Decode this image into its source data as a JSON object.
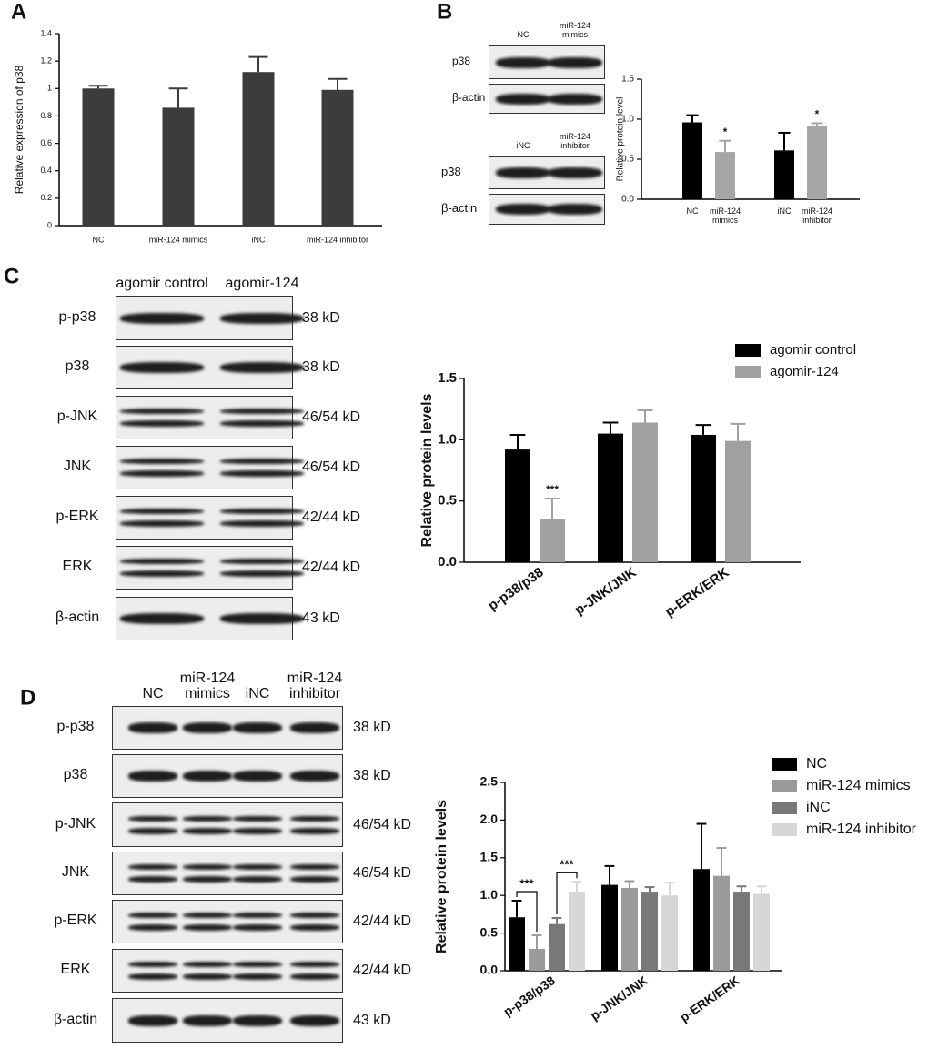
{
  "panel_labels": [
    "A",
    "B",
    "C",
    "D"
  ],
  "blots": [
    {
      "columns": [
        "NC",
        "miR-124 mimics"
      ],
      "rows": [
        {
          "label": "p38"
        },
        {
          "label": "β-actin"
        }
      ]
    },
    {
      "columns": [
        "iNC",
        "miR-124 inhibitor"
      ],
      "rows": [
        {
          "label": "p38"
        },
        {
          "label": "β-actin"
        }
      ]
    },
    {
      "columns": [
        "agomir control",
        "agomir-124"
      ],
      "rows": [
        {
          "label": "p-p38",
          "size": "38 kD"
        },
        {
          "label": "p38",
          "size": "38 kD"
        },
        {
          "label": "p-JNK",
          "size": "46/54 kD"
        },
        {
          "label": "JNK",
          "size": "46/54 kD"
        },
        {
          "label": "p-ERK",
          "size": "42/44 kD"
        },
        {
          "label": "ERK",
          "size": "42/44 kD"
        },
        {
          "label": "β-actin",
          "size": "43 kD"
        }
      ]
    },
    {
      "columns": [
        "NC",
        "miR-124 mimics",
        "iNC",
        "miR-124 inhibitor"
      ],
      "rows": [
        {
          "label": "p-p38",
          "size": "38 kD"
        },
        {
          "label": "p38",
          "size": "38 kD"
        },
        {
          "label": "p-JNK",
          "size": "46/54 kD"
        },
        {
          "label": "JNK",
          "size": "46/54 kD"
        },
        {
          "label": "p-ERK",
          "size": "42/44 kD"
        },
        {
          "label": "ERK",
          "size": "42/44 kD"
        },
        {
          "label": "β-actin",
          "size": "43 kD"
        }
      ]
    }
  ],
  "chart_data": [
    {
      "type": "bar",
      "y_label": "Relative expression of p38",
      "categories": [
        "NC",
        "miR-124 mimics",
        "iNC",
        "miR-124 inhibitor"
      ],
      "values": [
        1.0,
        0.86,
        1.12,
        0.99
      ],
      "errors": [
        0.02,
        0.14,
        0.11,
        0.08
      ],
      "colors": [
        "#3c3c3c",
        "#3c3c3c",
        "#3c3c3c",
        "#3c3c3c"
      ],
      "ylim": [
        0,
        1.4
      ],
      "yticks": [
        0,
        0.2,
        0.4,
        0.6,
        0.8,
        1,
        1.2,
        1.4
      ]
    },
    {
      "type": "bar",
      "y_label": "Relative protein level",
      "categories": [
        "NC",
        "miR-124 mimics",
        "iNC",
        "miR-124 inhibitor"
      ],
      "values": [
        0.96,
        0.59,
        0.61,
        0.91
      ],
      "errors": [
        0.09,
        0.14,
        0.22,
        0.04
      ],
      "colors": [
        "#000000",
        "#a6a6a6",
        "#000000",
        "#a6a6a6"
      ],
      "marks": [
        null,
        "*",
        null,
        "*"
      ],
      "ylim": [
        0,
        1.5
      ],
      "yticks": [
        {
          "value": 0,
          "label": "0.0"
        },
        {
          "value": 0.5,
          "label": "0.5"
        },
        {
          "value": 1,
          "label": "1.0"
        },
        {
          "value": 1.5,
          "label": "1.5"
        }
      ]
    },
    {
      "type": "bar",
      "y_label": "Relative protein levels",
      "categories": [
        "p-p38/p38",
        "p-JNK/JNK",
        "p-ERK/ERK"
      ],
      "series": [
        {
          "name": "agomir control",
          "color": "#000000",
          "values": [
            0.92,
            1.05,
            1.04
          ],
          "errors": [
            0.12,
            0.09,
            0.08
          ]
        },
        {
          "name": "agomir-124",
          "color": "#a0a0a0",
          "values": [
            0.35,
            1.14,
            0.99
          ],
          "errors": [
            0.17,
            0.1,
            0.14
          ],
          "marks": [
            "***",
            null,
            null
          ]
        }
      ],
      "ylim": [
        0,
        1.5
      ],
      "yticks": [
        {
          "value": 0,
          "label": "0.0"
        },
        {
          "value": 0.5,
          "label": "0.5"
        },
        {
          "value": 1,
          "label": "1.0"
        },
        {
          "value": 1.5,
          "label": "1.5"
        }
      ]
    },
    {
      "type": "bar",
      "y_label": "Relative protein levels",
      "categories": [
        "p-p38/p38",
        "p-JNK/JNK",
        "p-ERK/ERK"
      ],
      "series": [
        {
          "name": "NC",
          "color": "#000000",
          "values": [
            0.71,
            1.14,
            1.35
          ],
          "errors": [
            0.22,
            0.25,
            0.6
          ]
        },
        {
          "name": "miR-124 mimics",
          "color": "#9a9a9a",
          "values": [
            0.29,
            1.1,
            1.26
          ],
          "errors": [
            0.18,
            0.09,
            0.37
          ],
          "marks": [
            "***",
            null,
            null
          ]
        },
        {
          "name": "iNC",
          "color": "#787878",
          "values": [
            0.62,
            1.05,
            1.05
          ],
          "errors": [
            0.08,
            0.06,
            0.07
          ]
        },
        {
          "name": "miR-124 inhibitor",
          "color": "#d6d6d6",
          "values": [
            1.05,
            1.0,
            1.02
          ],
          "errors": [
            0.13,
            0.17,
            0.1
          ],
          "marks": [
            "***",
            null,
            null
          ]
        }
      ],
      "ylim": [
        0,
        2.5
      ],
      "yticks": [
        {
          "value": 0,
          "label": "0.0"
        },
        {
          "value": 0.5,
          "label": "0.5"
        },
        {
          "value": 1,
          "label": "1.0"
        },
        {
          "value": 1.5,
          "label": "1.5"
        },
        {
          "value": 2,
          "label": "2.0"
        },
        {
          "value": 2.5,
          "label": "2.5"
        }
      ]
    }
  ]
}
